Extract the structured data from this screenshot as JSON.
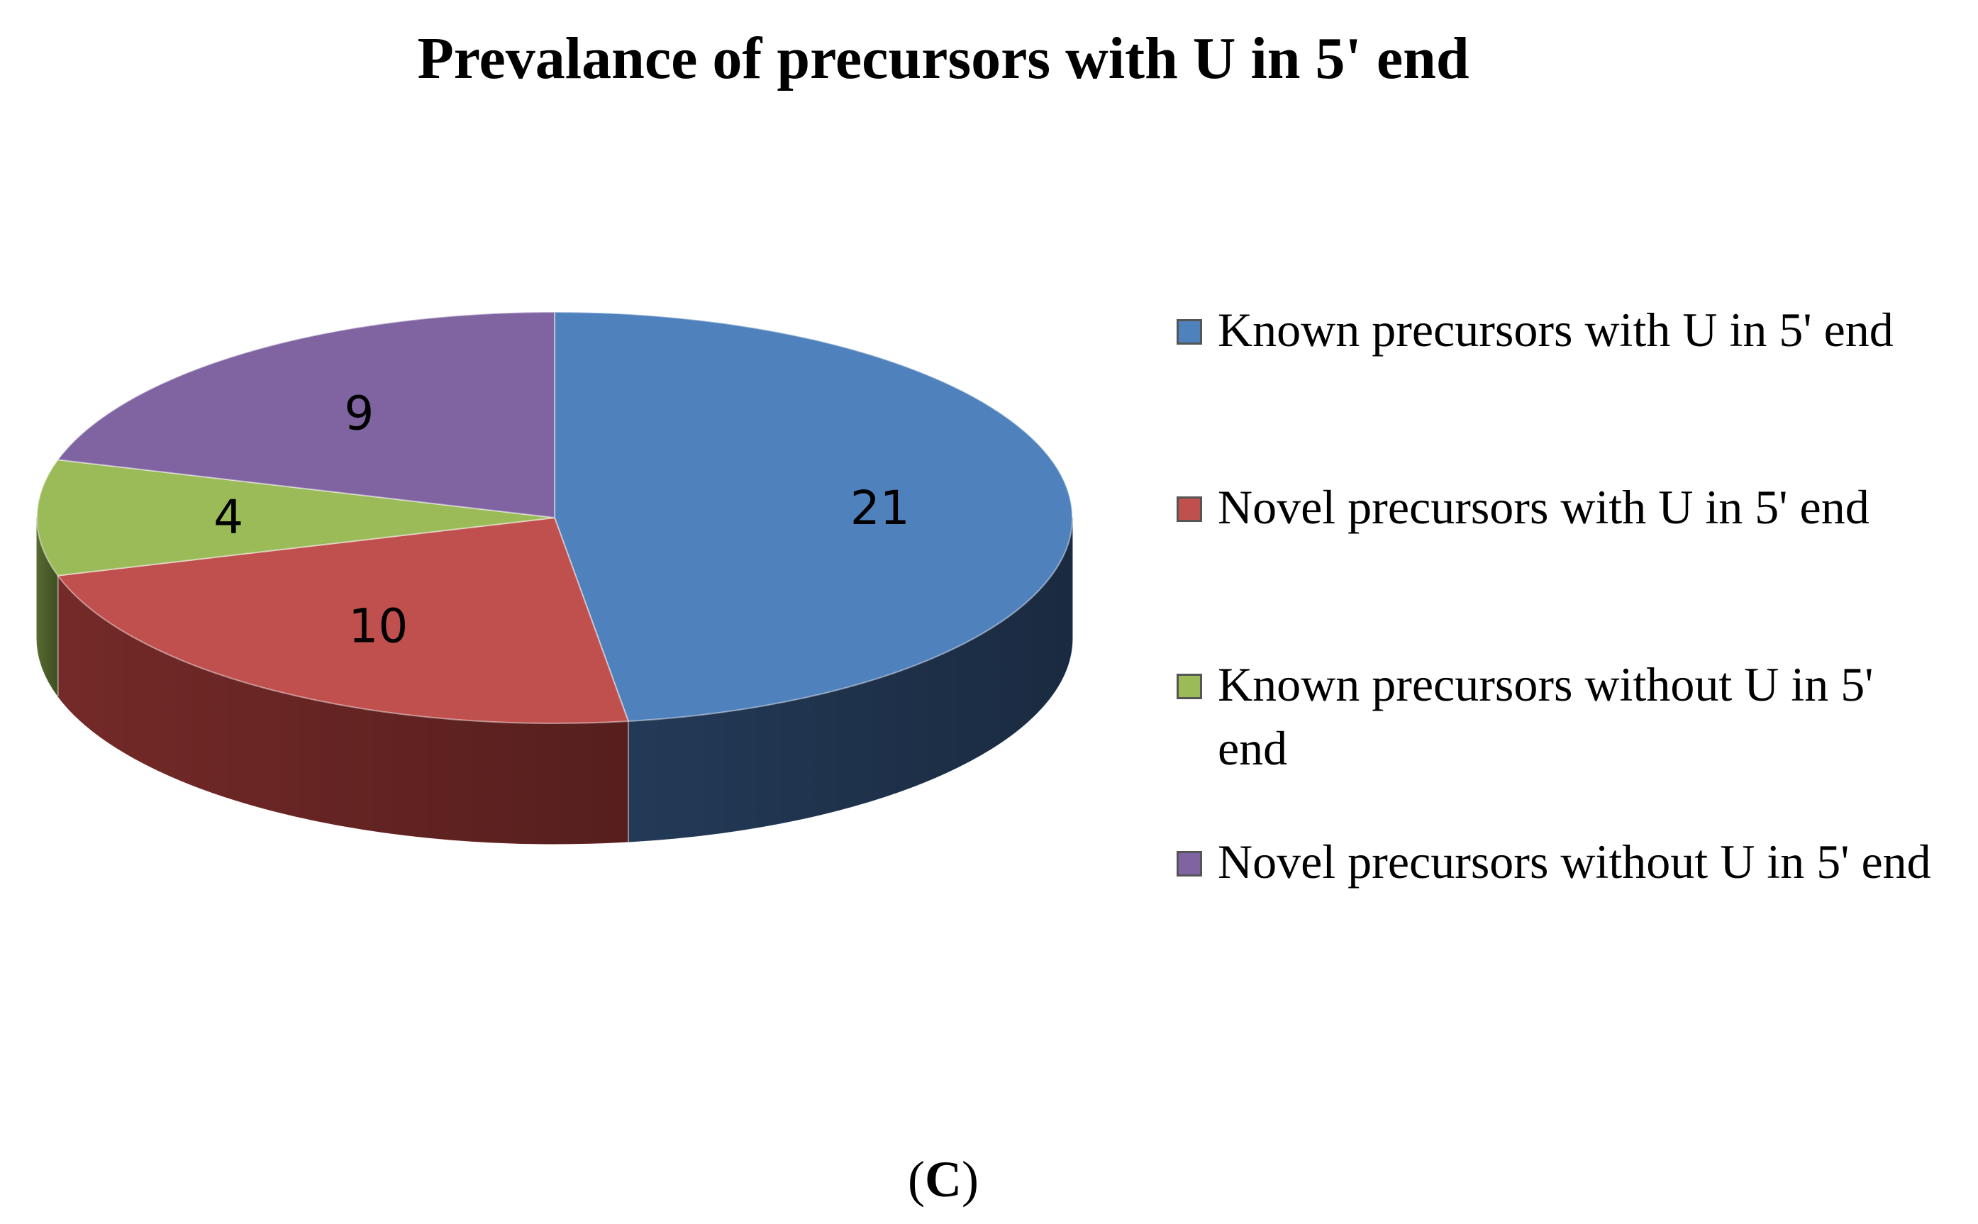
{
  "chart_data": {
    "type": "pie",
    "title": "Prevalance of precursors with U in 5' end",
    "series": [
      {
        "name": "",
        "values": [
          21,
          10,
          4,
          9
        ]
      }
    ],
    "categories": [
      "Known precursors with U in 5' end",
      "Novel precursors with U in 5' end",
      "Known precursors without U in 5' end",
      "Novel precursors without U in 5' end"
    ],
    "data_labels": [
      "21",
      "10",
      "4",
      "9"
    ],
    "colors": [
      "#4f81bd",
      "#c0504d",
      "#9bbb59",
      "#8064a2"
    ],
    "side_colors": [
      "#253d5c",
      "#7a2c2a",
      "#5a7032",
      "#4a3a60"
    ],
    "legend_position": "right",
    "style": "3d"
  },
  "panel_label": {
    "open": "(",
    "letter": "C",
    "close": ")"
  }
}
